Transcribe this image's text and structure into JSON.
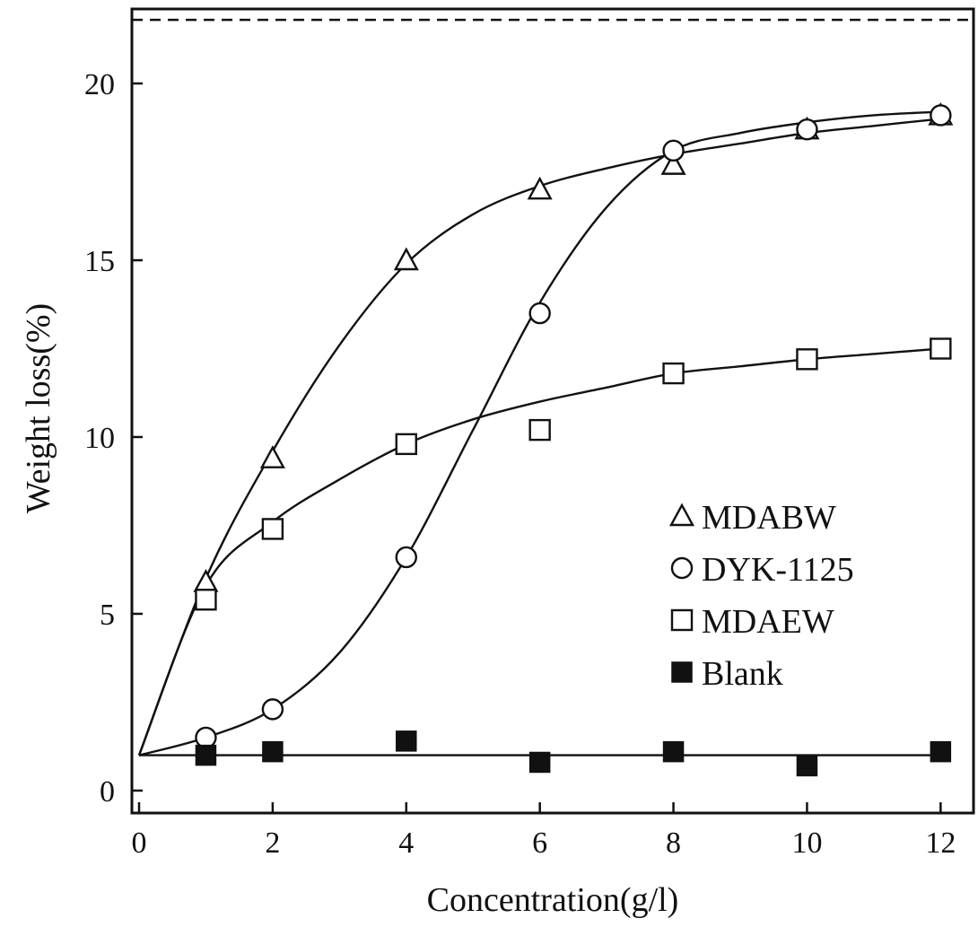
{
  "chart_data": {
    "type": "scatter",
    "title": "",
    "xlabel": "Concentration(g/l)",
    "ylabel": "Weight loss(%)",
    "xlim": [
      0,
      12.6
    ],
    "ylim": [
      0,
      22
    ],
    "xticks": [
      0,
      2,
      4,
      6,
      8,
      10,
      12
    ],
    "yticks": [
      0,
      5,
      10,
      15,
      20
    ],
    "reference_line": {
      "y": 21.8,
      "style": "dashed"
    },
    "legend_position": "lower-right",
    "series": [
      {
        "name": "MDABW",
        "marker": "triangle-open",
        "x": [
          1,
          2,
          4,
          6,
          8,
          10,
          12
        ],
        "y": [
          5.9,
          9.4,
          15.0,
          17.0,
          17.7,
          18.7,
          19.1
        ],
        "curve": [
          [
            0,
            1.0
          ],
          [
            1,
            6.0
          ],
          [
            2,
            9.6
          ],
          [
            3,
            12.6
          ],
          [
            4,
            14.9
          ],
          [
            5,
            16.3
          ],
          [
            6,
            17.1
          ],
          [
            7,
            17.6
          ],
          [
            8,
            18.0
          ],
          [
            9,
            18.3
          ],
          [
            10,
            18.6
          ],
          [
            11,
            18.8
          ],
          [
            12,
            19.0
          ]
        ]
      },
      {
        "name": "DYK-1125",
        "marker": "circle-open",
        "x": [
          1,
          2,
          4,
          6,
          8,
          10,
          12
        ],
        "y": [
          1.5,
          2.3,
          6.6,
          13.5,
          18.1,
          18.7,
          19.1
        ],
        "curve": [
          [
            0,
            1.0
          ],
          [
            1,
            1.5
          ],
          [
            2,
            2.3
          ],
          [
            3,
            3.9
          ],
          [
            4,
            6.6
          ],
          [
            5,
            10.2
          ],
          [
            6,
            13.8
          ],
          [
            7,
            16.5
          ],
          [
            8,
            18.1
          ],
          [
            9,
            18.6
          ],
          [
            10,
            18.9
          ],
          [
            11,
            19.1
          ],
          [
            12,
            19.2
          ]
        ]
      },
      {
        "name": "MDAEW",
        "marker": "square-open",
        "x": [
          1,
          2,
          4,
          6,
          8,
          10,
          12
        ],
        "y": [
          5.4,
          7.4,
          9.8,
          10.2,
          11.8,
          12.2,
          12.5
        ],
        "curve": [
          [
            0,
            1.0
          ],
          [
            1,
            5.8
          ],
          [
            2,
            7.6
          ],
          [
            3,
            8.8
          ],
          [
            4,
            9.8
          ],
          [
            5,
            10.5
          ],
          [
            6,
            11.0
          ],
          [
            7,
            11.4
          ],
          [
            8,
            11.8
          ],
          [
            9,
            12.0
          ],
          [
            10,
            12.2
          ],
          [
            11,
            12.35
          ],
          [
            12,
            12.5
          ]
        ]
      },
      {
        "name": "Blank",
        "marker": "square-filled",
        "x": [
          1,
          2,
          4,
          6,
          8,
          10,
          12
        ],
        "y": [
          1.0,
          1.1,
          1.4,
          0.8,
          1.1,
          0.7,
          1.1
        ],
        "curve": [
          [
            0,
            1.0
          ],
          [
            12,
            1.0
          ]
        ]
      }
    ]
  }
}
